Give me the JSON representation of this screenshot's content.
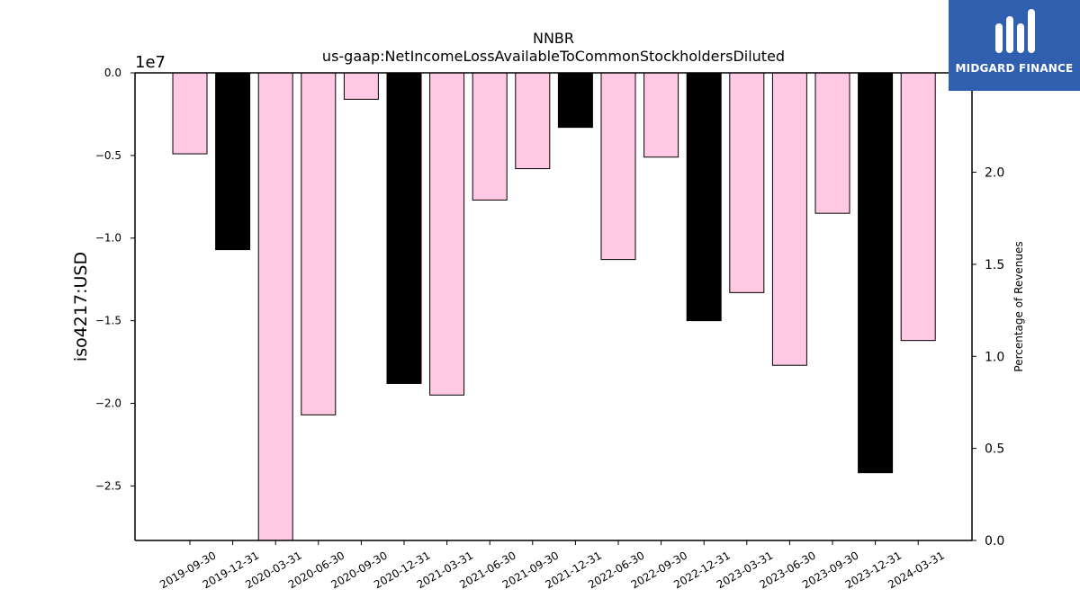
{
  "chart_data": {
    "type": "bar",
    "title": "NNBR",
    "subtitle": "us-gaap:NetIncomeLossAvailableToCommonStockholdersDiluted",
    "ylabel": "iso4217:USD",
    "y_offset_label": "1e7",
    "y2label": "Percentage of Revenues",
    "categories": [
      "2019-09-30",
      "2019-12-31",
      "2020-03-31",
      "2020-06-30",
      "2020-09-30",
      "2020-12-31",
      "2021-03-31",
      "2021-06-30",
      "2021-09-30",
      "2021-12-31",
      "2022-06-30",
      "2022-09-30",
      "2022-12-31",
      "2023-03-31",
      "2023-06-30",
      "2023-09-30",
      "2023-12-31",
      "2024-03-31"
    ],
    "values": [
      -4900000,
      -10700000,
      -28500000,
      -20700000,
      -1600000,
      -18800000,
      -19500000,
      -7700000,
      -5800000,
      -3300000,
      -11300000,
      -5100000,
      -15000000,
      -13300000,
      -17700000,
      -8500000,
      -24200000,
      -16200000
    ],
    "bar_colors": [
      "#ffc8e3",
      "#000000",
      "#ffc8e3",
      "#ffc8e3",
      "#ffc8e3",
      "#000000",
      "#ffc8e3",
      "#ffc8e3",
      "#ffc8e3",
      "#000000",
      "#ffc8e3",
      "#ffc8e3",
      "#000000",
      "#ffc8e3",
      "#ffc8e3",
      "#ffc8e3",
      "#000000",
      "#ffc8e3"
    ],
    "ylim": [
      -28300000,
      0
    ],
    "yticks": [
      0,
      -5000000,
      -10000000,
      -15000000,
      -20000000,
      -25000000
    ],
    "ytick_labels": [
      "0.0",
      "−0.5",
      "−1.0",
      "−1.5",
      "−2.0",
      "−2.5"
    ],
    "y2lim": [
      0,
      2.54
    ],
    "y2ticks": [
      0,
      0.5,
      1.0,
      1.5,
      2.0
    ],
    "y2tick_labels": [
      "0.0",
      "0.5",
      "1.0",
      "1.5",
      "2.0"
    ],
    "grid": false,
    "legend": "none"
  },
  "logo": {
    "text": "MIDGARD FINANCE",
    "bg_color": "#2f5fae"
  }
}
